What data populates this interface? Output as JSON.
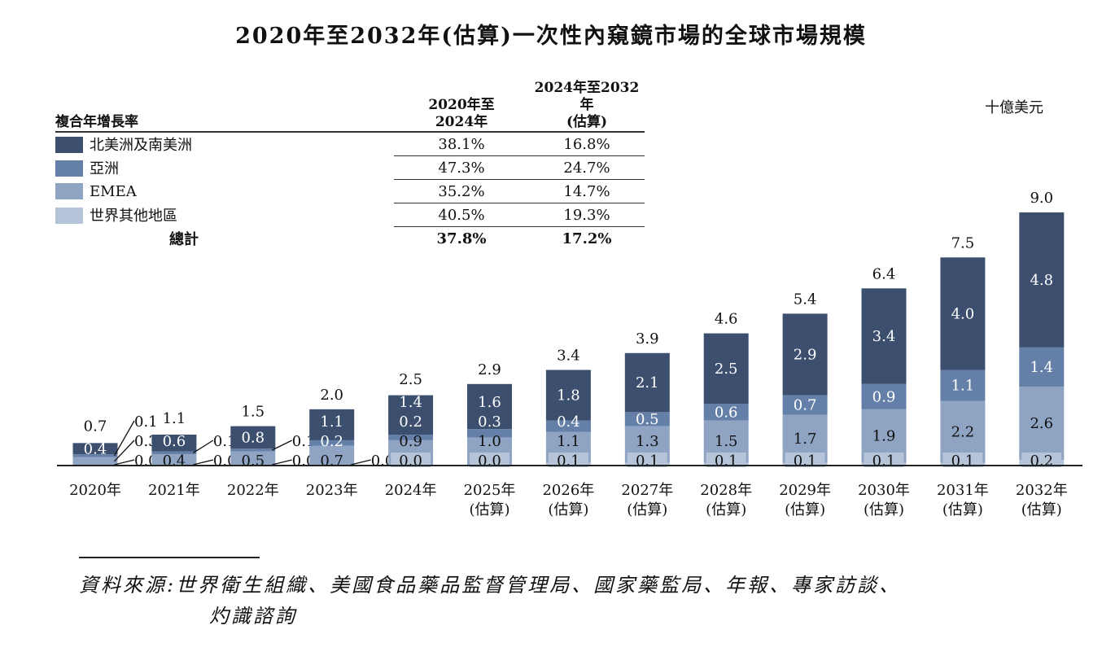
{
  "title": "2020年至2032年(估算)一次性內窺鏡市場的全球市場規模",
  "unit": "十億美元",
  "cagr_table": {
    "header": "複合年增長率",
    "col1": [
      "2020年至",
      "2024年"
    ],
    "col2": [
      "2024年至2032年",
      "(估算)"
    ],
    "rows": [
      {
        "label": "北美洲及南美洲",
        "v1": "38.1%",
        "v2": "16.8%",
        "color": "#3d4f6e"
      },
      {
        "label": "亞洲",
        "v1": "47.3%",
        "v2": "24.7%",
        "color": "#6580a8"
      },
      {
        "label": "EMEA",
        "v1": "35.2%",
        "v2": "14.7%",
        "color": "#8fa3c3"
      },
      {
        "label": "世界其他地區",
        "v1": "40.5%",
        "v2": "19.3%",
        "color": "#b6c4d9"
      }
    ],
    "total": {
      "label": "總計",
      "v1": "37.8%",
      "v2": "17.2%"
    }
  },
  "chart_data": {
    "type": "bar",
    "stacked": true,
    "categories": [
      [
        "2020年"
      ],
      [
        "2021年"
      ],
      [
        "2022年"
      ],
      [
        "2023年"
      ],
      [
        "2024年"
      ],
      [
        "2025年",
        "(估算)"
      ],
      [
        "2026年",
        "(估算)"
      ],
      [
        "2027年",
        "(估算)"
      ],
      [
        "2028年",
        "(估算)"
      ],
      [
        "2029年",
        "(估算)"
      ],
      [
        "2030年",
        "(估算)"
      ],
      [
        "2031年",
        "(估算)"
      ],
      [
        "2032年",
        "(估算)"
      ]
    ],
    "ylim": [
      0,
      9.0
    ],
    "series": [
      {
        "name": "世界其他地區",
        "color": "#b6c4d9",
        "values": [
          0.0,
          0.0,
          0.0,
          0.0,
          0.0,
          0.0,
          0.1,
          0.1,
          0.1,
          0.1,
          0.1,
          0.1,
          0.2
        ]
      },
      {
        "name": "EMEA",
        "color": "#8fa3c3",
        "values": [
          0.3,
          0.4,
          0.5,
          0.7,
          0.9,
          1.0,
          1.1,
          1.3,
          1.5,
          1.7,
          1.9,
          2.2,
          2.6
        ]
      },
      {
        "name": "亞洲",
        "color": "#6580a8",
        "values": [
          0.1,
          0.1,
          0.1,
          0.2,
          0.2,
          0.3,
          0.4,
          0.5,
          0.6,
          0.7,
          0.9,
          1.1,
          1.4
        ]
      },
      {
        "name": "北美洲及南美洲",
        "color": "#3d4f6e",
        "values": [
          0.4,
          0.6,
          0.8,
          1.1,
          1.4,
          1.6,
          1.8,
          2.1,
          2.5,
          2.9,
          3.4,
          4.0,
          4.8
        ]
      }
    ],
    "totals": [
      0.7,
      1.1,
      1.5,
      2.0,
      2.5,
      2.9,
      3.4,
      3.9,
      4.6,
      5.4,
      6.4,
      7.5,
      9.0
    ]
  },
  "source": {
    "line1": "資料來源:世界衛生組織、美國食品藥品監督管理局、國家藥監局、年報、專家訪談、",
    "line2": "灼識諮詢"
  }
}
